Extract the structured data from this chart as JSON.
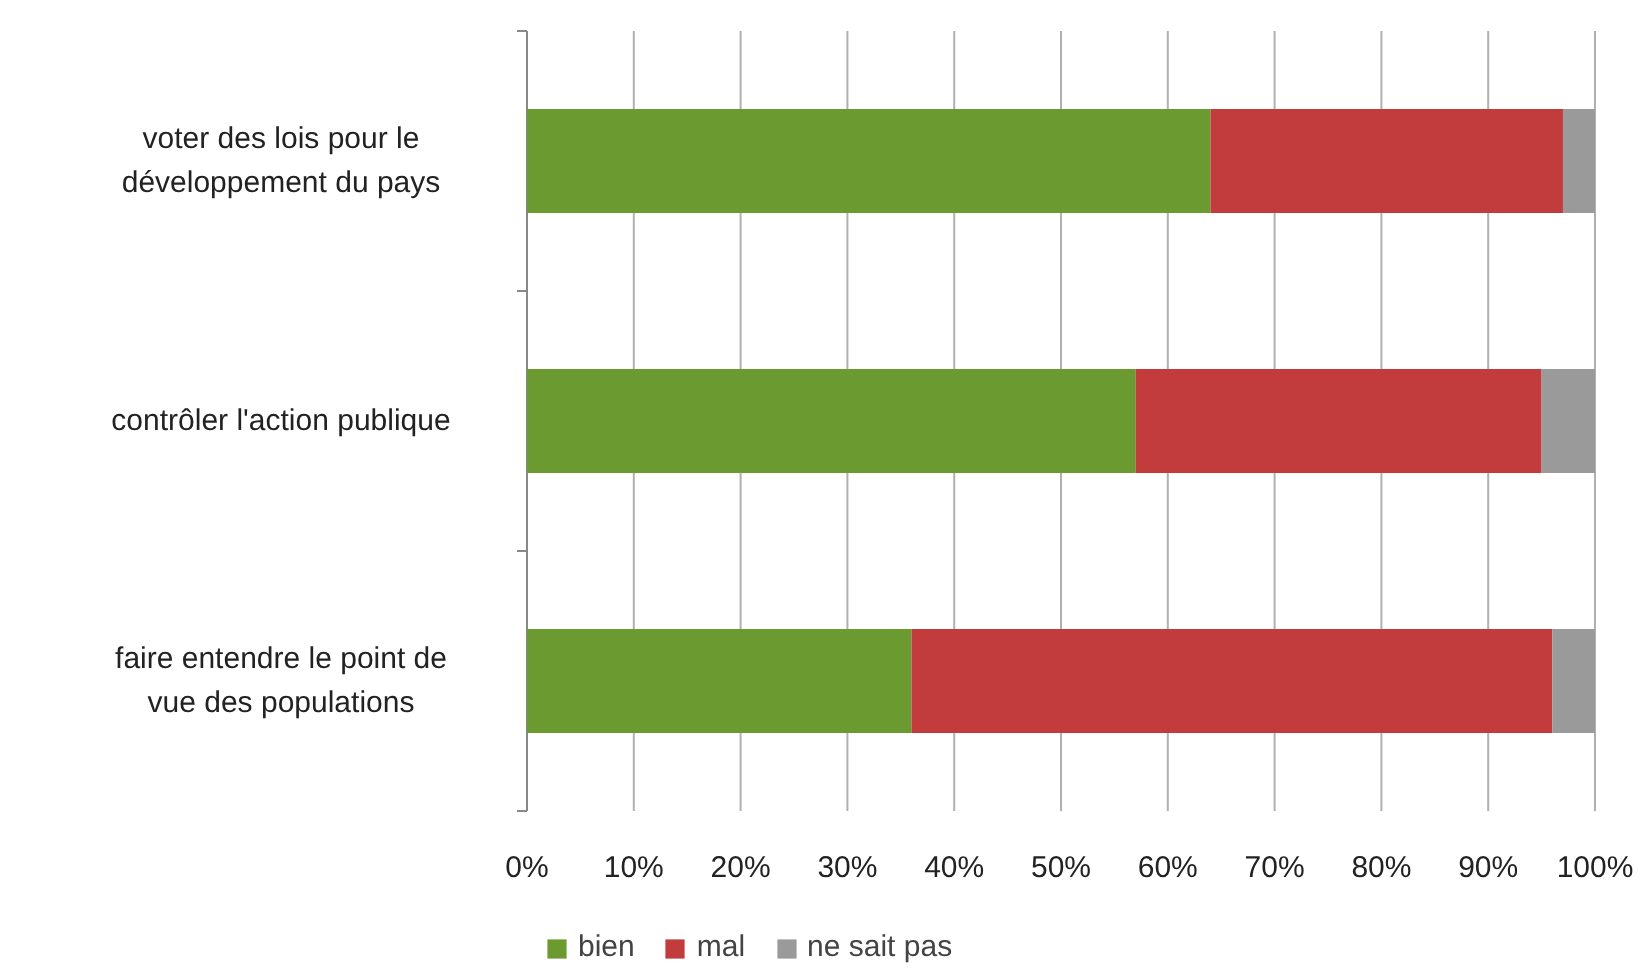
{
  "chart_data": {
    "type": "bar",
    "orientation": "horizontal",
    "stacked": true,
    "categories": [
      "voter des lois pour le développement du pays",
      "contrôler l'action publique",
      "faire entendre le point de vue des populations"
    ],
    "series": [
      {
        "name": "bien",
        "color": "#6b9a30",
        "values": [
          64,
          57,
          36
        ]
      },
      {
        "name": "mal",
        "color": "#c23b3d",
        "values": [
          33,
          38,
          60
        ]
      },
      {
        "name": "ne sait pas",
        "color": "#9a9a9a",
        "values": [
          3,
          5,
          4
        ]
      }
    ],
    "xlim": [
      0,
      100
    ],
    "xticks": [
      {
        "value": 0,
        "label": "0%"
      },
      {
        "value": 10,
        "label": "10%"
      },
      {
        "value": 20,
        "label": "20%"
      },
      {
        "value": 30,
        "label": "30%"
      },
      {
        "value": 40,
        "label": "40%"
      },
      {
        "value": 50,
        "label": "50%"
      },
      {
        "value": 60,
        "label": "60%"
      },
      {
        "value": 70,
        "label": "70%"
      },
      {
        "value": 80,
        "label": "80%"
      },
      {
        "value": 90,
        "label": "90%"
      },
      {
        "value": 100,
        "label": "100%"
      }
    ],
    "grid": "x",
    "legend": "bottom"
  }
}
